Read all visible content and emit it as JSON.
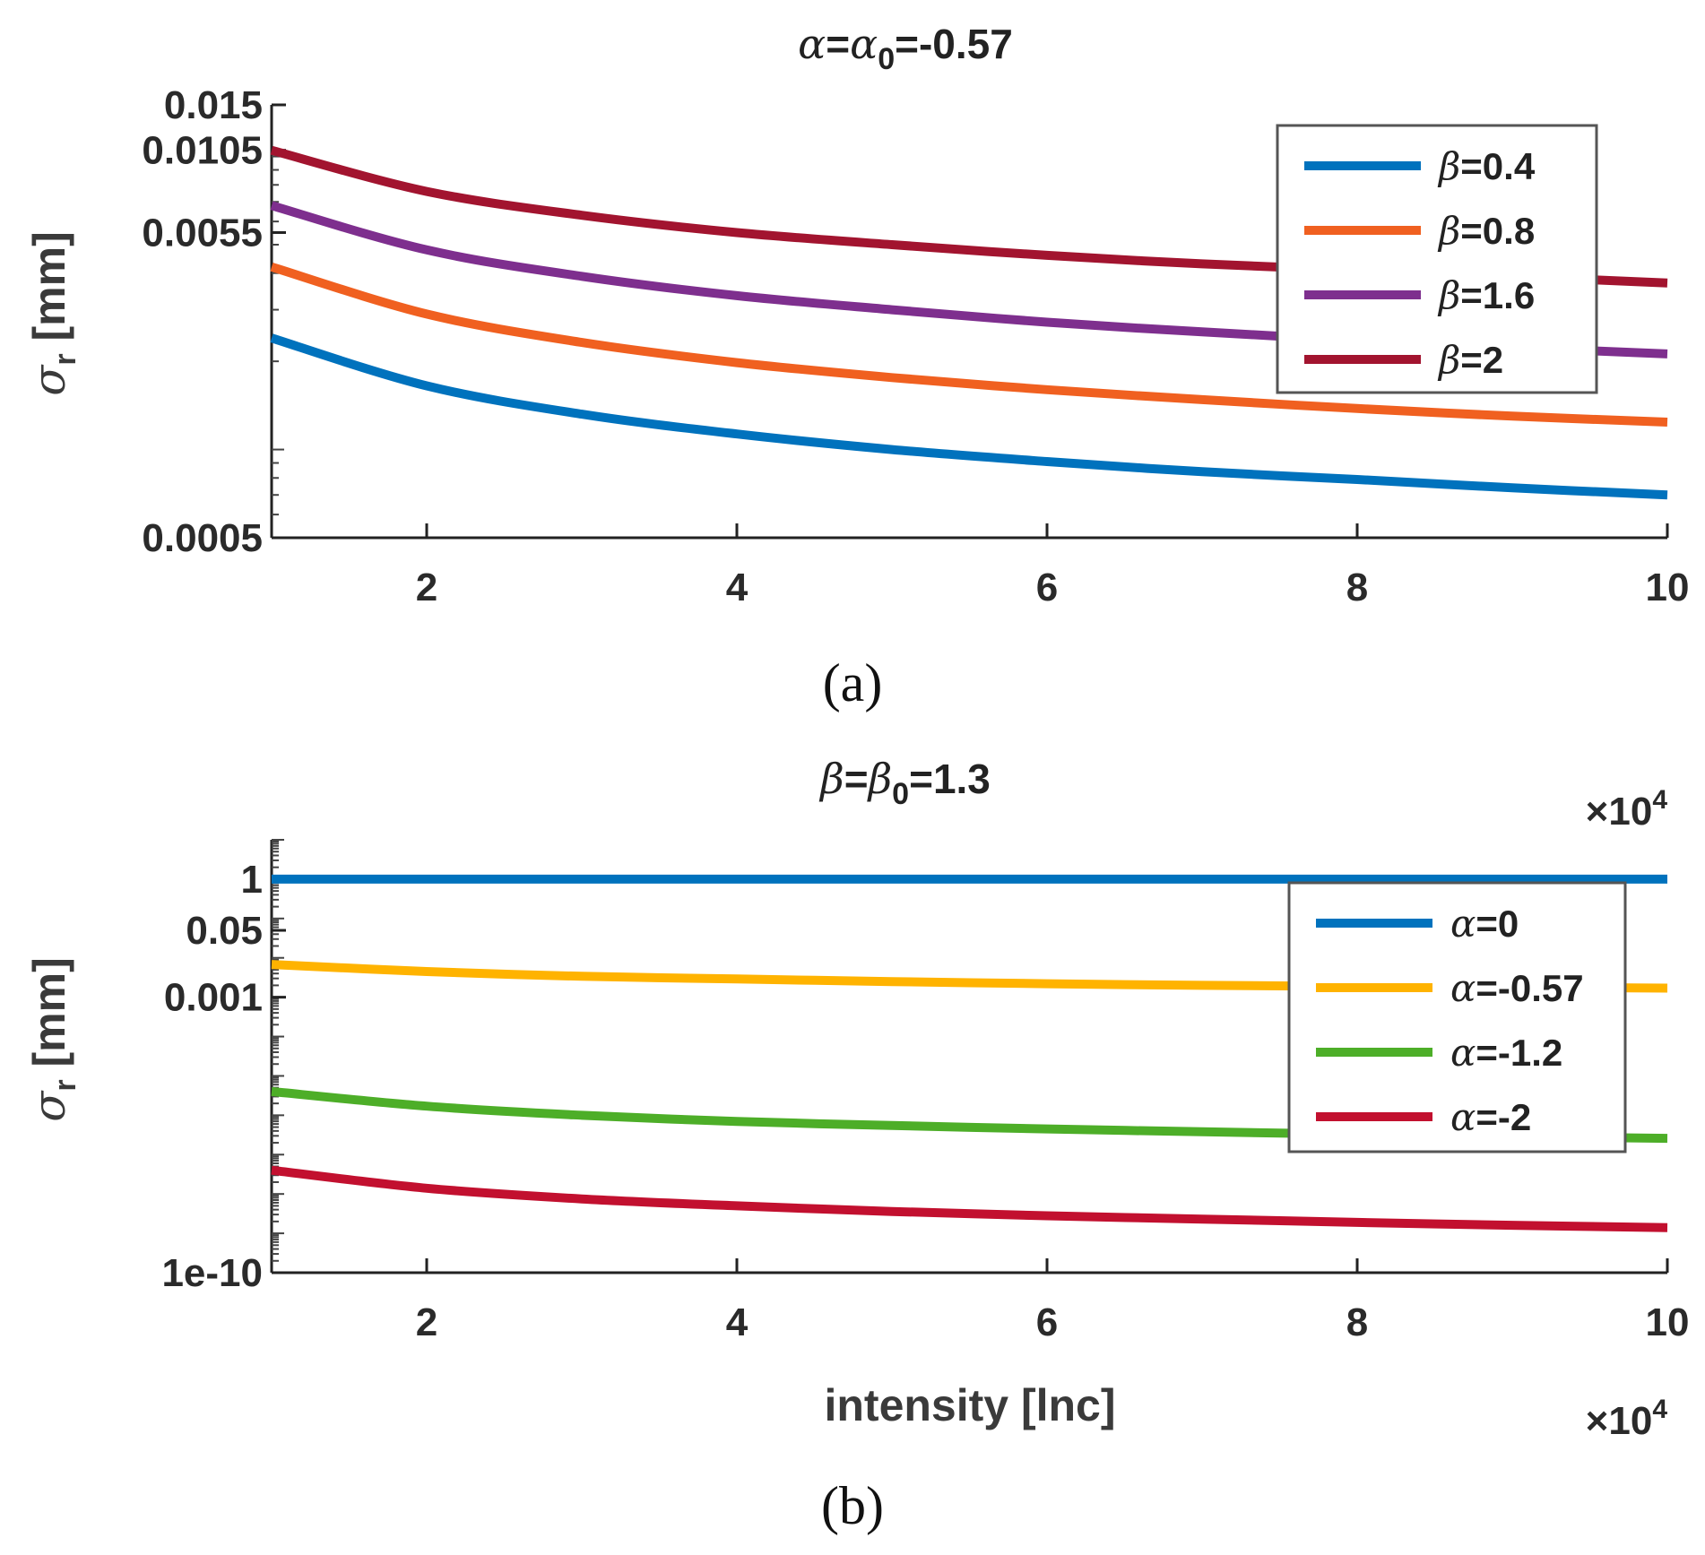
{
  "chart_data": [
    {
      "type": "line",
      "panel": "(a)",
      "title": "α=α0=-0.57",
      "title_parts": {
        "lhs": "α",
        "mid": "α",
        "sub": "0",
        "rhs": "=-0.57"
      },
      "xlabel": "",
      "ylabel": "σr [mm]",
      "ylabel_parts": {
        "sym": "σ",
        "sub": "r",
        "unit": "[mm]"
      },
      "y_scale": "log",
      "ylim": [
        0.0005,
        0.015
      ],
      "xlim": [
        1,
        10
      ],
      "x_multiplier": "×10^4",
      "y_ticks": [
        0.0005,
        0.0055,
        0.0105,
        0.015
      ],
      "y_tick_labels": [
        "0.0005",
        "0.0055",
        "0.0105",
        "0.015"
      ],
      "x_ticks": [
        2,
        4,
        6,
        8,
        10
      ],
      "x_tick_labels": [
        "2",
        "4",
        "6",
        "8",
        "10"
      ],
      "legend": "top-right",
      "series": [
        {
          "name": "β=0.4",
          "sym": "β",
          "val": "=0.4",
          "color": "#0072BD",
          "x": [
            1,
            2,
            3,
            4,
            5,
            6,
            7,
            8,
            9,
            10
          ],
          "values": [
            0.0024,
            0.00165,
            0.00132,
            0.00113,
            0.001,
            0.00091,
            0.00084,
            0.00079,
            0.00074,
            0.0007
          ]
        },
        {
          "name": "β=0.8",
          "sym": "β",
          "val": "=0.8",
          "color": "#F06020",
          "x": [
            1,
            2,
            3,
            4,
            5,
            6,
            7,
            8,
            9,
            10
          ],
          "values": [
            0.0042,
            0.0029,
            0.00232,
            0.00198,
            0.00176,
            0.0016,
            0.00148,
            0.00138,
            0.0013,
            0.00124
          ]
        },
        {
          "name": "β=1.6",
          "sym": "β",
          "val": "=1.6",
          "color": "#7E2F8E",
          "x": [
            1,
            2,
            3,
            4,
            5,
            6,
            7,
            8,
            9,
            10
          ],
          "values": [
            0.0068,
            0.0048,
            0.0039,
            0.00335,
            0.003,
            0.00272,
            0.00252,
            0.00236,
            0.00223,
            0.00212
          ]
        },
        {
          "name": "β=2",
          "sym": "β",
          "val": "=2",
          "color": "#A2142F",
          "x": [
            1,
            2,
            3,
            4,
            5,
            6,
            7,
            8,
            9,
            10
          ],
          "values": [
            0.0105,
            0.0076,
            0.0063,
            0.0055,
            0.005,
            0.0046,
            0.0043,
            0.0041,
            0.0039,
            0.0037
          ]
        }
      ]
    },
    {
      "type": "line",
      "panel": "(b)",
      "title": "β=β0=1.3",
      "title_parts": {
        "lhs": "β",
        "mid": "β",
        "sub": "0",
        "rhs": "=1.3"
      },
      "xlabel": "intensity [lnc]",
      "ylabel": "σr [mm]",
      "ylabel_parts": {
        "sym": "σ",
        "sub": "r",
        "unit": "[mm]"
      },
      "y_scale": "log",
      "ylim": [
        1e-10,
        10
      ],
      "xlim": [
        1,
        10
      ],
      "x_multiplier": "×10^4",
      "y_ticks": [
        1e-10,
        0.001,
        0.05,
        1
      ],
      "y_tick_labels": [
        "1e-10",
        "0.001",
        "0.05",
        "1"
      ],
      "x_ticks": [
        2,
        4,
        6,
        8,
        10
      ],
      "x_tick_labels": [
        "2",
        "4",
        "6",
        "8",
        "10"
      ],
      "legend": "right",
      "series": [
        {
          "name": "α=0",
          "sym": "α",
          "val": "=0",
          "color": "#0072BD",
          "x": [
            1,
            2,
            3,
            4,
            5,
            6,
            7,
            8,
            9,
            10
          ],
          "values": [
            1,
            1,
            1,
            1,
            1,
            1,
            1,
            1,
            1,
            1
          ]
        },
        {
          "name": "α=-0.57",
          "sym": "α",
          "val": "=-0.57",
          "color": "#FFB300",
          "x": [
            1,
            2,
            3,
            4,
            5,
            6,
            7,
            8,
            9,
            10
          ],
          "values": [
            0.0068,
            0.0045,
            0.0034,
            0.0029,
            0.0025,
            0.0022,
            0.002,
            0.0019,
            0.0018,
            0.0017
          ]
        },
        {
          "name": "α=-1.2",
          "sym": "α",
          "val": "=-1.2",
          "color": "#4DAE28",
          "x": [
            1,
            2,
            3,
            4,
            5,
            6,
            7,
            8,
            9,
            10
          ],
          "values": [
            4e-06,
            1.7e-06,
            1e-06,
            7e-07,
            5.5e-07,
            4.5e-07,
            3.8e-07,
            3.3e-07,
            2.9e-07,
            2.6e-07
          ]
        },
        {
          "name": "α=-2",
          "sym": "α",
          "val": "=-2",
          "color": "#C2102F",
          "x": [
            1,
            2,
            3,
            4,
            5,
            6,
            7,
            8,
            9,
            10
          ],
          "values": [
            4e-08,
            1.4e-08,
            7.5e-09,
            5e-09,
            3.6e-09,
            2.8e-09,
            2.3e-09,
            1.9e-09,
            1.6e-09,
            1.4e-09
          ]
        }
      ]
    }
  ]
}
